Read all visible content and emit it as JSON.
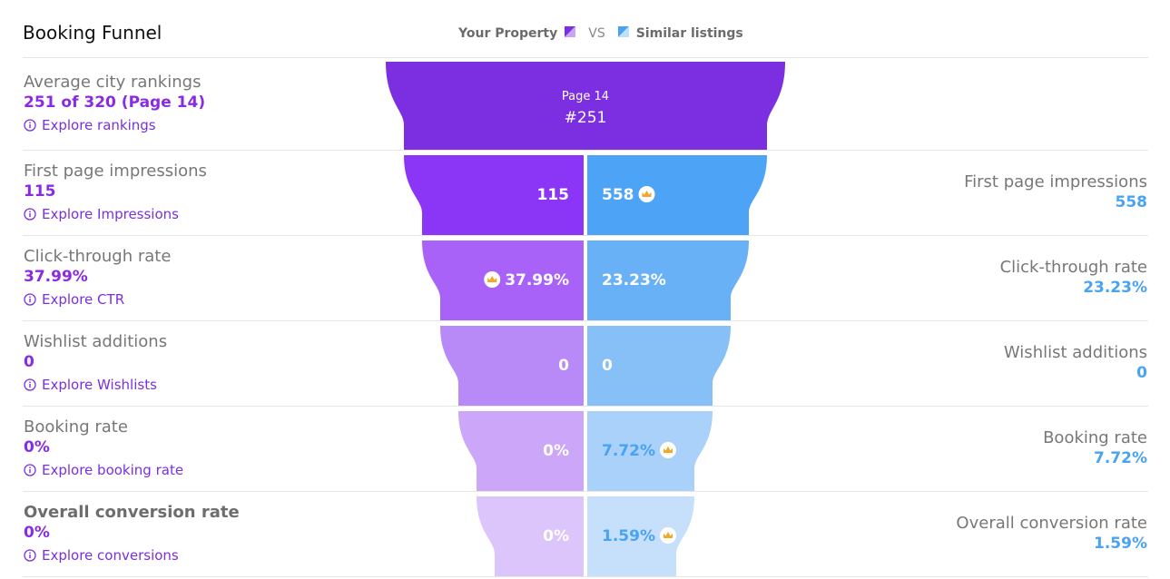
{
  "title": "Booking Funnel",
  "legend": {
    "own_label": "Your Property",
    "vs": "VS",
    "peer_label": "Similar listings",
    "own_color": "#7b2fe0",
    "peer_color": "#4aa3f0"
  },
  "chart_data": {
    "type": "funnel",
    "top_stage": {
      "label": "Average city rankings",
      "value_text": "251 of 320 (Page 14)",
      "link": "Explore rankings",
      "bar_line1": "Page 14",
      "bar_line2": "#251",
      "color": "#7b2fe0"
    },
    "stages": [
      {
        "label": "First page impressions",
        "own": "115",
        "peer": "558",
        "link": "Explore Impressions",
        "winner": "peer",
        "own_color": "#8b35f7",
        "peer_color": "#4da3f5"
      },
      {
        "label": "Click-through rate",
        "own": "37.99%",
        "peer": "23.23%",
        "link": "Explore CTR",
        "winner": "own",
        "own_color": "#a862f8",
        "peer_color": "#68b1f6"
      },
      {
        "label": "Wishlist additions",
        "own": "0",
        "peer": "0",
        "link": "Explore Wishlists",
        "winner": "none",
        "own_color": "#b88af7",
        "peer_color": "#86c0f7"
      },
      {
        "label": "Booking rate",
        "own": "0%",
        "peer": "7.72%",
        "link": "Explore booking rate",
        "winner": "peer",
        "own_color": "#cba6f9",
        "peer_color": "#a9d1f9"
      },
      {
        "label": "Overall conversion rate",
        "own": "0%",
        "peer": "1.59%",
        "link": "Explore conversions",
        "winner": "peer",
        "own_color": "#dcc5fb",
        "peer_color": "#c6e0fb"
      }
    ]
  },
  "icons": {
    "info": "info-circle-icon",
    "winner": "crown-icon"
  }
}
